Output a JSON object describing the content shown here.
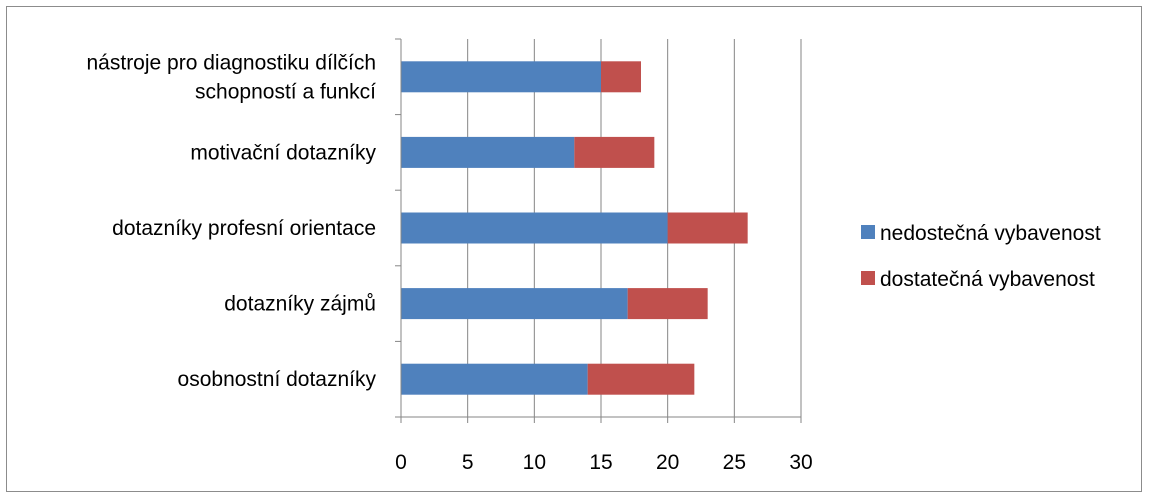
{
  "chart_data": {
    "type": "bar",
    "orientation": "horizontal",
    "stacked": true,
    "categories": [
      [
        "nástroje pro diagnostiku dílčích",
        "schopností a funkcí"
      ],
      [
        "motivační dotazníky"
      ],
      [
        "dotazníky profesní orientace"
      ],
      [
        "dotazníky zájmů"
      ],
      [
        "osobnostní dotazníky"
      ]
    ],
    "series": [
      {
        "name": "nedostečná vybavenost",
        "color": "#4f81bd",
        "values": [
          15,
          13,
          20,
          17,
          14
        ]
      },
      {
        "name": "dostatečná vybavenost",
        "color": "#c0504d",
        "values": [
          3,
          6,
          6,
          6,
          8
        ]
      }
    ],
    "xlim": [
      0,
      30
    ],
    "xticks": [
      "0",
      "5",
      "10",
      "15",
      "20",
      "25",
      "30"
    ],
    "grid": true,
    "legend": "right"
  }
}
